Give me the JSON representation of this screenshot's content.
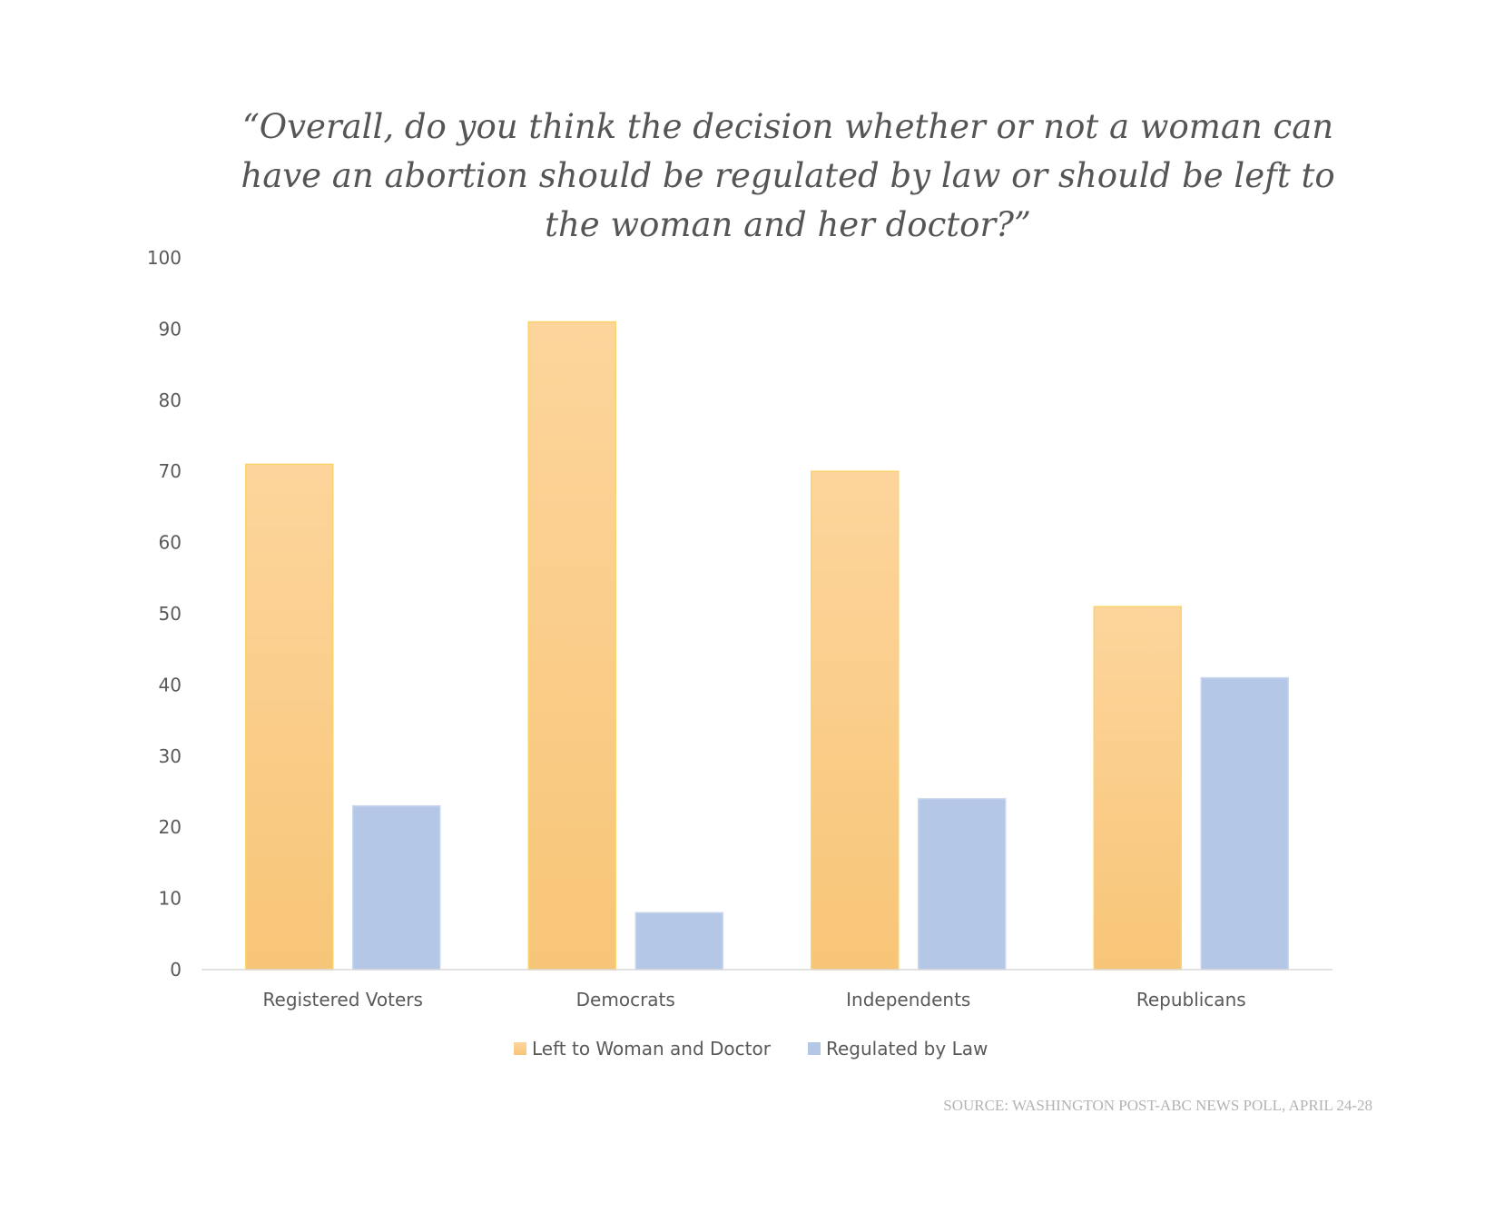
{
  "chart_data": {
    "type": "bar",
    "title_lines": [
      "“Overall, do you think the decision whether or not a woman can",
      "have an abortion should be regulated by law or should be left to",
      "the woman and her doctor?”"
    ],
    "categories": [
      "Registered Voters",
      "Democrats",
      "Independents",
      "Republicans"
    ],
    "series": [
      {
        "name": "Left to Woman and Doctor",
        "values": [
          71,
          91,
          70,
          51
        ],
        "color_top": "#fdd59c",
        "color_bottom": "#f7c577",
        "stroke": "#fbd36b"
      },
      {
        "name": "Regulated by Law",
        "values": [
          23,
          8,
          24,
          41
        ],
        "color_top": "#b4c7e7",
        "color_bottom": "#b4c7e7",
        "stroke": "#c9d6ee"
      }
    ],
    "y_ticks": [
      "0",
      "10",
      "20",
      "30",
      "40",
      "50",
      "60",
      "70",
      "80",
      "90",
      "100"
    ],
    "ylim": [
      0,
      100
    ],
    "xlabel": "",
    "ylabel": "",
    "grid": false,
    "legend_position": "bottom-center",
    "source": "SOURCE: WASHINGTON POST-ABC NEWS POLL, APRIL 24-28"
  }
}
